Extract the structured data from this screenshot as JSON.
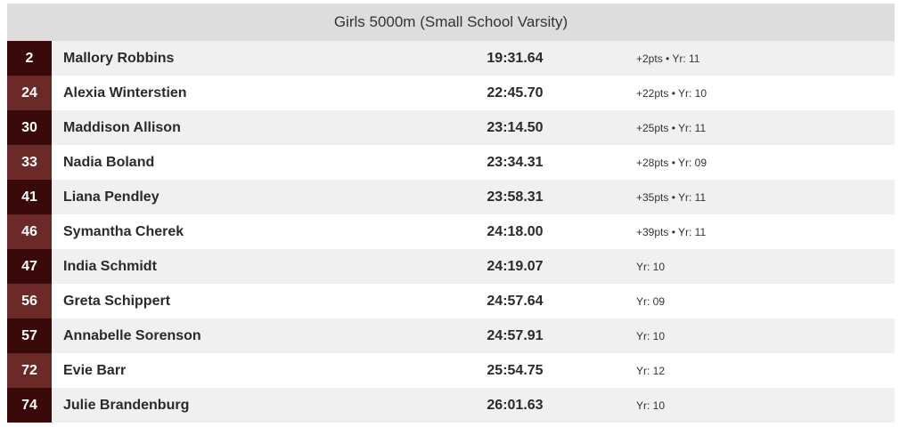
{
  "header": {
    "title": "Girls 5000m (Small School Varsity)"
  },
  "rows": [
    {
      "place": "2",
      "name": "Mallory Robbins",
      "time": "19:31.64",
      "meta": "+2pts • Yr: 11"
    },
    {
      "place": "24",
      "name": "Alexia Winterstien",
      "time": "22:45.70",
      "meta": "+22pts • Yr: 10"
    },
    {
      "place": "30",
      "name": "Maddison Allison",
      "time": "23:14.50",
      "meta": "+25pts • Yr: 11"
    },
    {
      "place": "33",
      "name": "Nadia Boland",
      "time": "23:34.31",
      "meta": "+28pts • Yr: 09"
    },
    {
      "place": "41",
      "name": "Liana Pendley",
      "time": "23:58.31",
      "meta": "+35pts • Yr: 11"
    },
    {
      "place": "46",
      "name": "Symantha Cherek",
      "time": "24:18.00",
      "meta": "+39pts • Yr: 11"
    },
    {
      "place": "47",
      "name": "India Schmidt",
      "time": "24:19.07",
      "meta": "Yr: 10"
    },
    {
      "place": "56",
      "name": "Greta Schippert",
      "time": "24:57.64",
      "meta": "Yr: 09"
    },
    {
      "place": "57",
      "name": "Annabelle Sorenson",
      "time": "24:57.91",
      "meta": "Yr: 10"
    },
    {
      "place": "72",
      "name": "Evie Barr",
      "time": "25:54.75",
      "meta": "Yr: 12"
    },
    {
      "place": "74",
      "name": "Julie Brandenburg",
      "time": "26:01.63",
      "meta": "Yr: 10"
    }
  ]
}
